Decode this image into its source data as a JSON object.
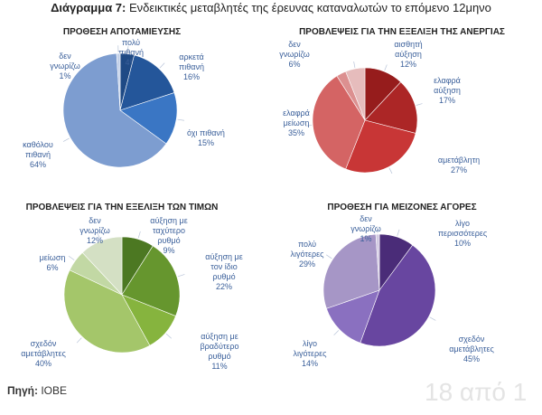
{
  "header": {
    "title_bold": "Διάγραμμα 7:",
    "title_rest": " Ενδεικτικές μεταβλητές της έρευνας καταναλωτών το επόμενο 12μηνο"
  },
  "watermark": "18 από 1",
  "source": {
    "label": "Πηγή:",
    "value": " ΙΟΒΕ"
  },
  "chart_data": [
    {
      "type": "pie",
      "title": "ΠΡΟΘΕΣΗ ΑΠΟΤΑΜΙΕΥΣΗΣ",
      "slices": [
        {
          "label": [
            "πολύ",
            "πιθανή",
            "4%"
          ],
          "value": 4,
          "color": "#1f4a85"
        },
        {
          "label": [
            "αρκετά",
            "πιθανή",
            "16%"
          ],
          "value": 16,
          "color": "#24569a"
        },
        {
          "label": [
            "όχι πιθανή",
            "15%"
          ],
          "value": 15,
          "color": "#3a76c4"
        },
        {
          "label": [
            "καθόλου",
            "πιθανή",
            "64%"
          ],
          "value": 64,
          "color": "#7d9dd0"
        },
        {
          "label": [
            "δεν",
            "γνωρίζω",
            "1%"
          ],
          "value": 1,
          "color": "#c2d0e8"
        }
      ]
    },
    {
      "type": "pie",
      "title": "ΠΡΟΒΛΕΨΕΙΣ ΓΙΑ ΤΗΝ ΕΞΕΛΙΞΗ ΤΗΣ ΑΝΕΡΓΙΑΣ",
      "slices": [
        {
          "label": [
            "αισθητή",
            "αύξηση",
            "12%"
          ],
          "value": 12,
          "color": "#961c1c"
        },
        {
          "label": [
            "ελαφρά",
            "αύξηση",
            "17%"
          ],
          "value": 17,
          "color": "#ac2626"
        },
        {
          "label": [
            "αμετάβλητη",
            "27%"
          ],
          "value": 27,
          "color": "#c83636"
        },
        {
          "label": [
            "ελαφρά",
            "μείωση",
            "35%"
          ],
          "value": 35,
          "color": "#d46464"
        },
        {
          "label": [],
          "value": 3,
          "color": "#dc9090"
        },
        {
          "label": [
            "δεν",
            "γνωρίζω",
            "6%"
          ],
          "value": 6,
          "color": "#e6bcbc"
        }
      ]
    },
    {
      "type": "pie",
      "title": "ΠΡΟΒΛΕΨΕΙΣ ΓΙΑ ΤΗΝ ΕΞΕΛΙΞΗ ΤΩΝ ΤΙΜΩΝ",
      "slices": [
        {
          "label": [
            "αύξηση με",
            "ταχύτερο",
            "ρυθμό",
            "9%"
          ],
          "value": 9,
          "color": "#4c7822"
        },
        {
          "label": [
            "αύξηση με",
            "τον ίδιο",
            "ρυθμό",
            "22%"
          ],
          "value": 22,
          "color": "#66962e"
        },
        {
          "label": [
            "αύξηση με",
            "βραδύτερο",
            "ρυθμό",
            "11%"
          ],
          "value": 11,
          "color": "#86b43e"
        },
        {
          "label": [
            "σχεδόν",
            "αμετάβλητες",
            "40%"
          ],
          "value": 40,
          "color": "#a4c66a"
        },
        {
          "label": [
            "μείωση",
            "6%"
          ],
          "value": 6,
          "color": "#c2d8a4"
        },
        {
          "label": [
            "δεν",
            "γνωρίζω",
            "12%"
          ],
          "value": 12,
          "color": "#d4e0c4"
        }
      ]
    },
    {
      "type": "pie",
      "title": "ΠΡΟΘΕΣΗ ΓΙΑ ΜΕΙΖΟΝΕΣ ΑΓΟΡΕΣ",
      "slices": [
        {
          "label": [
            "λίγο",
            "περισσότερες",
            "10%"
          ],
          "value": 10,
          "color": "#4a2c78"
        },
        {
          "label": [
            "σχεδόν",
            "αμετάβλητες",
            "45%"
          ],
          "value": 45,
          "color": "#6846a0"
        },
        {
          "label": [
            "λίγο",
            "λιγότερες",
            "14%"
          ],
          "value": 14,
          "color": "#8a70c0"
        },
        {
          "label": [
            "πολύ",
            "λιγότερες",
            "29%"
          ],
          "value": 29,
          "color": "#a696c6"
        },
        {
          "label": [
            "δεν",
            "γνωρίζω",
            "1%"
          ],
          "value": 1,
          "color": "#d2cae2"
        }
      ]
    }
  ],
  "colors": {
    "label_text": "#3a5f9a",
    "title_text": "#222222"
  }
}
